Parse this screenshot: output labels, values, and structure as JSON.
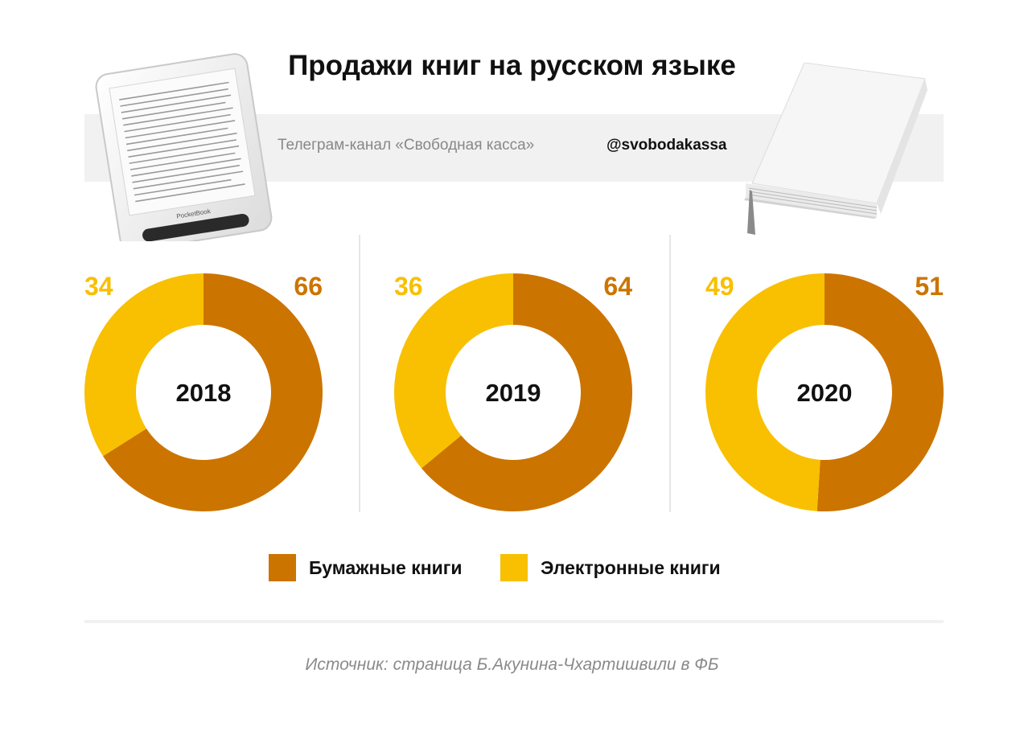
{
  "header": {
    "title": "Продажи книг на русском языке",
    "channel": "Телеграм-канал «Свободная касса»",
    "handle": "@svobodakassa"
  },
  "ereader_brand": "PocketBook",
  "legend": {
    "paper": "Бумажные книги",
    "electronic": "Электронные книги"
  },
  "colors": {
    "paper": "#cc7400",
    "electronic": "#f8c000"
  },
  "source": "Источник: страница Б.Акунина-Чхартишвили в ФБ",
  "chart_data": [
    {
      "type": "pie",
      "donut": true,
      "center_label": "2018",
      "categories": [
        "Бумажные книги",
        "Электронные книги"
      ],
      "values": [
        66,
        34
      ]
    },
    {
      "type": "pie",
      "donut": true,
      "center_label": "2019",
      "categories": [
        "Бумажные книги",
        "Электронные книги"
      ],
      "values": [
        64,
        36
      ]
    },
    {
      "type": "pie",
      "donut": true,
      "center_label": "2020",
      "categories": [
        "Бумажные книги",
        "Электронные книги"
      ],
      "values": [
        51,
        49
      ]
    }
  ]
}
